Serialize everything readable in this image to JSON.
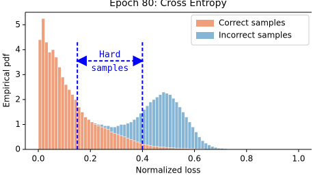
{
  "chart_data": {
    "type": "histogram",
    "title": "Epoch 80: Cross Entropy",
    "x_label": "Normalized loss",
    "y_label": "Empirical pdf",
    "bins": [
      0,
      0.0125,
      0.025,
      0.0375,
      0.05,
      0.0625,
      0.075,
      0.0875,
      0.1,
      0.1125,
      0.125,
      0.1375,
      0.15,
      0.1625,
      0.175,
      0.1875,
      0.2,
      0.2125,
      0.225,
      0.2375,
      0.25,
      0.2625,
      0.275,
      0.2875,
      0.3,
      0.3125,
      0.325,
      0.3375,
      0.35,
      0.3625,
      0.375,
      0.3875,
      0.4,
      0.4125,
      0.425,
      0.4375,
      0.45,
      0.4625,
      0.475,
      0.4875,
      0.5,
      0.5125,
      0.525,
      0.5375,
      0.55,
      0.5625,
      0.575,
      0.5875,
      0.6,
      0.6125,
      0.625,
      0.6375,
      0.65,
      0.6625,
      0.675,
      0.6875,
      0.7,
      0.7125,
      0.725,
      0.7375,
      0.75,
      0.7625,
      0.775,
      0.7875,
      0.8
    ],
    "series": [
      {
        "name": "Correct samples",
        "color": "#ef9f7b",
        "values": [
          4.4,
          5.25,
          4.3,
          3.9,
          4.0,
          3.7,
          3.3,
          2.9,
          2.6,
          2.4,
          2.2,
          2.0,
          1.7,
          1.5,
          1.3,
          1.2,
          1.1,
          1.0,
          0.95,
          0.9,
          0.85,
          0.8,
          0.7,
          0.65,
          0.6,
          0.55,
          0.5,
          0.45,
          0.4,
          0.35,
          0.3,
          0.25,
          0.2,
          0.18,
          0.15,
          0.13,
          0.12,
          0.1,
          0.09,
          0.08,
          0.07,
          0.06,
          0.05,
          0.05,
          0.04,
          0.04,
          0.03,
          0.03,
          0.02,
          0.02,
          0.02,
          0.01,
          0.01,
          0.01,
          0.01,
          0.01,
          0,
          0,
          0,
          0,
          0,
          0,
          0,
          0
        ]
      },
      {
        "name": "Incorrect samples",
        "color": "#87b5d5",
        "values": [
          0,
          0.02,
          0.05,
          0.1,
          0.2,
          0.3,
          0.45,
          0.6,
          0.8,
          1.0,
          1.2,
          1.35,
          1.45,
          1.4,
          1.3,
          1.2,
          1.1,
          1.05,
          1.0,
          1.0,
          0.95,
          0.95,
          0.9,
          0.9,
          0.95,
          1.0,
          1.0,
          1.05,
          1.1,
          1.2,
          1.3,
          1.45,
          1.6,
          1.75,
          1.9,
          2.0,
          2.1,
          2.2,
          2.3,
          2.25,
          2.2,
          2.05,
          1.9,
          1.7,
          1.5,
          1.3,
          1.1,
          0.9,
          0.7,
          0.5,
          0.35,
          0.25,
          0.18,
          0.12,
          0.08,
          0.05,
          0.04,
          0.03,
          0.02,
          0.02,
          0.01,
          0.01,
          0,
          0
        ]
      }
    ],
    "draw_order": [
      1,
      0
    ],
    "xlim": [
      -0.05,
      1.05
    ],
    "ylim": [
      0,
      5.5
    ],
    "xticks": [
      {
        "value": 0,
        "label": "0.0"
      },
      {
        "value": 0.2,
        "label": "0.2"
      },
      {
        "value": 0.4,
        "label": "0.4"
      },
      {
        "value": 0.6,
        "label": "0.6"
      },
      {
        "value": 0.8,
        "label": "0.8"
      },
      {
        "value": 1,
        "label": "1.0"
      }
    ],
    "yticks": [
      0,
      1,
      2,
      3,
      4,
      5
    ],
    "legend": "upper right",
    "annotation": {
      "lines": [
        "Hard",
        "samples"
      ],
      "x": [
        0.15,
        0.4
      ],
      "top": 4.3,
      "arrow_y": 3.55,
      "color": "#0000ff"
    }
  }
}
